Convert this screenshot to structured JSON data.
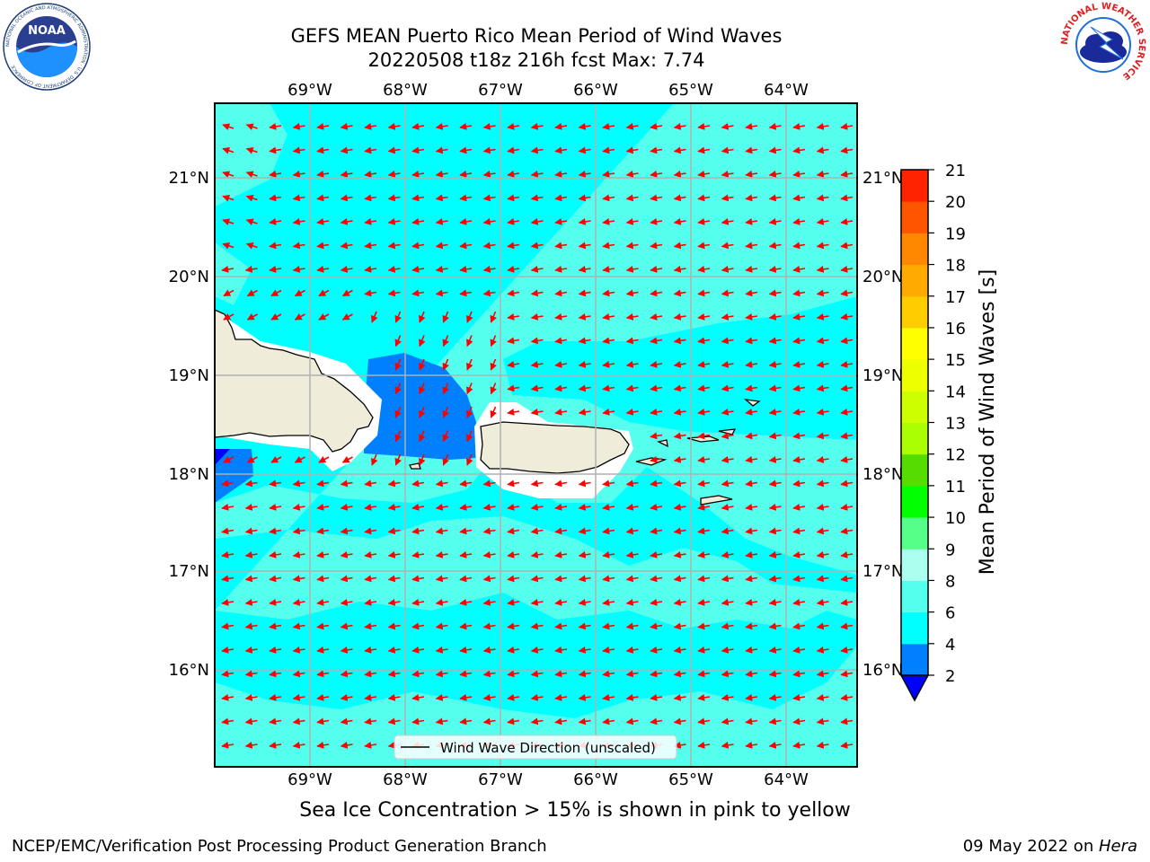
{
  "title": {
    "line1": "GEFS MEAN Puerto Rico Mean Period of Wind Waves",
    "line2": "20220508 t18z 216h fcst   Max: 7.74"
  },
  "map": {
    "lon_labels": [
      "69°W",
      "68°W",
      "67°W",
      "66°W",
      "65°W",
      "64°W"
    ],
    "lat_labels": [
      "21°N",
      "20°N",
      "19°N",
      "18°N",
      "17°N",
      "16°N"
    ],
    "legend_label": "Wind Wave Direction (unscaled)",
    "arrow_color": "#ff0000",
    "ocean_color": "#00ffff",
    "land_color": "#efedda"
  },
  "colorbar": {
    "label": "Mean Period of Wind Waves [s]",
    "ticks": [
      "2",
      "4",
      "6",
      "8",
      "9",
      "10",
      "11",
      "12",
      "13",
      "14",
      "15",
      "16",
      "17",
      "18",
      "19",
      "20",
      "21"
    ],
    "colors": [
      "#0000ff",
      "#0080ff",
      "#00ffff",
      "#55ffee",
      "#aaffee",
      "#55ff88",
      "#00ff00",
      "#55dd00",
      "#aaff00",
      "#ccff00",
      "#eeff00",
      "#ffff00",
      "#ffcc00",
      "#ffaa00",
      "#ff8800",
      "#ff5500",
      "#ff2200",
      "#ff0000"
    ]
  },
  "logos": {
    "noaa_text": "NOAA",
    "noaa_ring": "NATIONAL OCEANIC AND ATMOSPHERIC ADMINISTRATION · U.S. DEPARTMENT OF COMMERCE",
    "nws_ring": "NATIONAL WEATHER SERVICE"
  },
  "footer": {
    "subtitle": "Sea Ice Concentration > 15% is shown in pink to yellow",
    "credit": "NCEP/EMC/Verification Post Processing Product Generation Branch",
    "date": "09 May 2022 on ",
    "machine": "Hera"
  }
}
